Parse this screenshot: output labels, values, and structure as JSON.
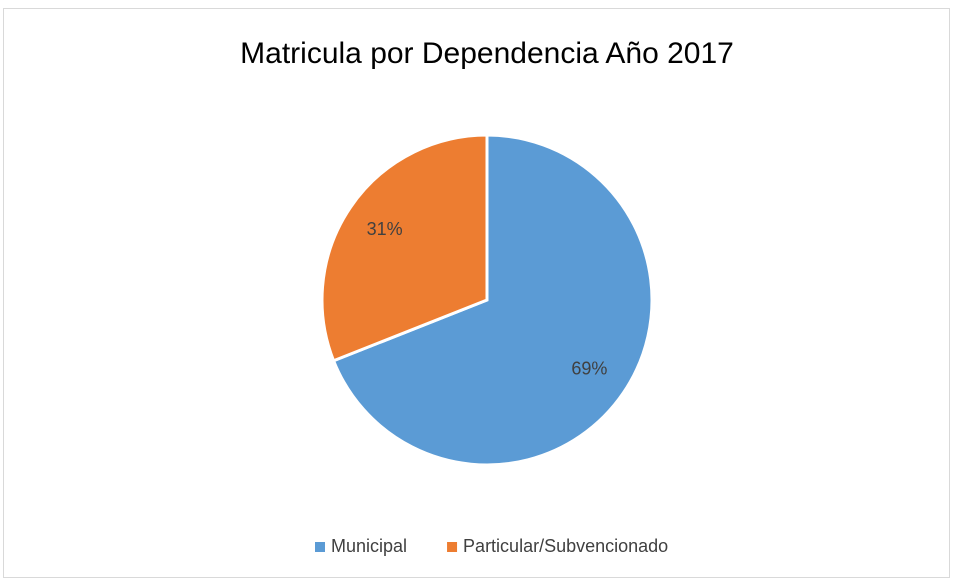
{
  "chart_data": {
    "type": "pie",
    "title": "Matricula por Dependencia Año 2017",
    "categories": [
      "Municipal",
      "Particular/Subvencionado"
    ],
    "values": [
      69,
      31
    ],
    "value_labels": [
      "69%",
      "31%"
    ],
    "colors": [
      "#5b9bd5",
      "#ed7d31"
    ],
    "legend": "bottom"
  }
}
